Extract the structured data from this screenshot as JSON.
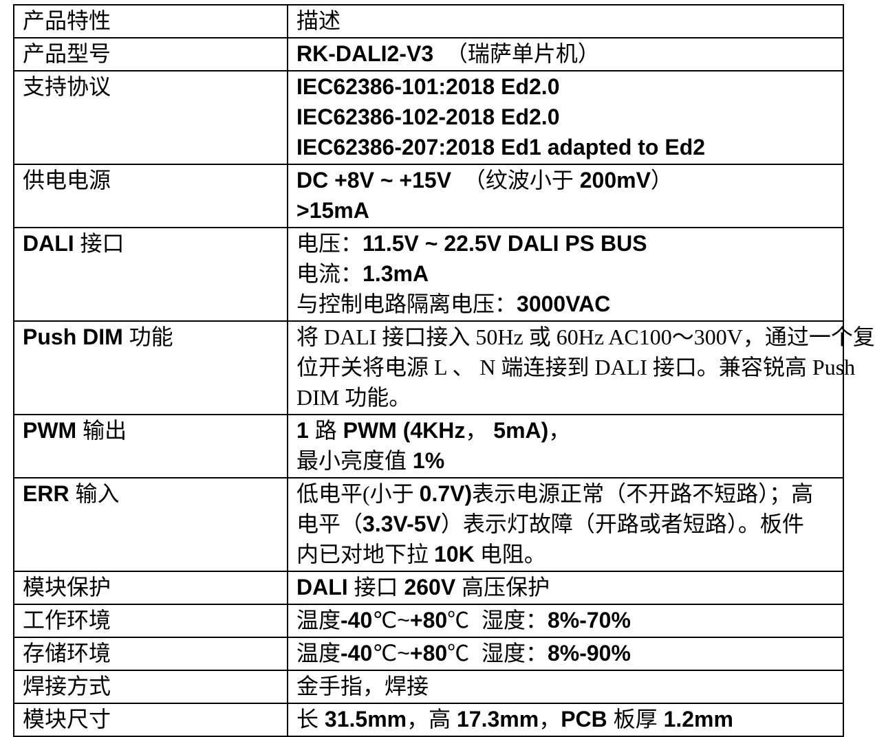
{
  "table": {
    "header": {
      "feature": "产品特性",
      "description": "描述"
    },
    "rows": [
      {
        "feature": "产品型号",
        "lines": [
          "RK-DALI2-V3  （瑞萨单片机）"
        ]
      },
      {
        "feature": "支持协议",
        "lines": [
          "IEC62386-101:2018 Ed2.0",
          "IEC62386-102-2018 Ed2.0",
          "IEC62386-207:2018 Ed1 adapted to Ed2"
        ]
      },
      {
        "feature": "供电电源",
        "lines": [
          "DC +8V ~ +15V  （纹波小于 200mV）",
          ">15mA"
        ]
      },
      {
        "feature": "DALI 接口",
        "lines": [
          "电压：11.5V ~ 22.5V DALI PS BUS",
          "电流：1.3mA",
          "与控制电路隔离电压：3000VAC"
        ]
      },
      {
        "feature": "Push DIM 功能",
        "lines": [
          "将 DALI 接口接入 50Hz 或 60Hz AC100～300V，通过一个复",
          "位开关将电源 L 、 N 端连接到 DALI 接口。兼容锐高 Push",
          "DIM 功能。"
        ]
      },
      {
        "feature": "PWM 输出",
        "lines": [
          "1 路 PWM (4KHz， 5mA)，",
          "最小亮度值 1%"
        ]
      },
      {
        "feature": "ERR 输入",
        "lines": [
          "低电平(小于 0.7V)表示电源正常（不开路不短路）；高",
          "电平（3.3V-5V）表示灯故障（开路或者短路）。板件",
          "内已对地下拉 10K 电阻。"
        ]
      },
      {
        "feature": "模块保护",
        "lines": [
          "DALI 接口 260V 高压保护"
        ]
      },
      {
        "feature": "工作环境",
        "lines": [
          "温度-40℃~+80℃  湿度：8%-70%"
        ]
      },
      {
        "feature": "存储环境",
        "lines": [
          "温度-40℃~+80℃  湿度：8%-90%"
        ]
      },
      {
        "feature": "焊接方式",
        "lines": [
          "金手指，焊接"
        ]
      },
      {
        "feature": "模块尺寸",
        "lines": [
          "长 31.5mm，高 17.3mm，PCB 板厚 1.2mm"
        ]
      }
    ]
  },
  "colors": {
    "text": "#000000",
    "border": "#000000",
    "background": "#ffffff"
  }
}
